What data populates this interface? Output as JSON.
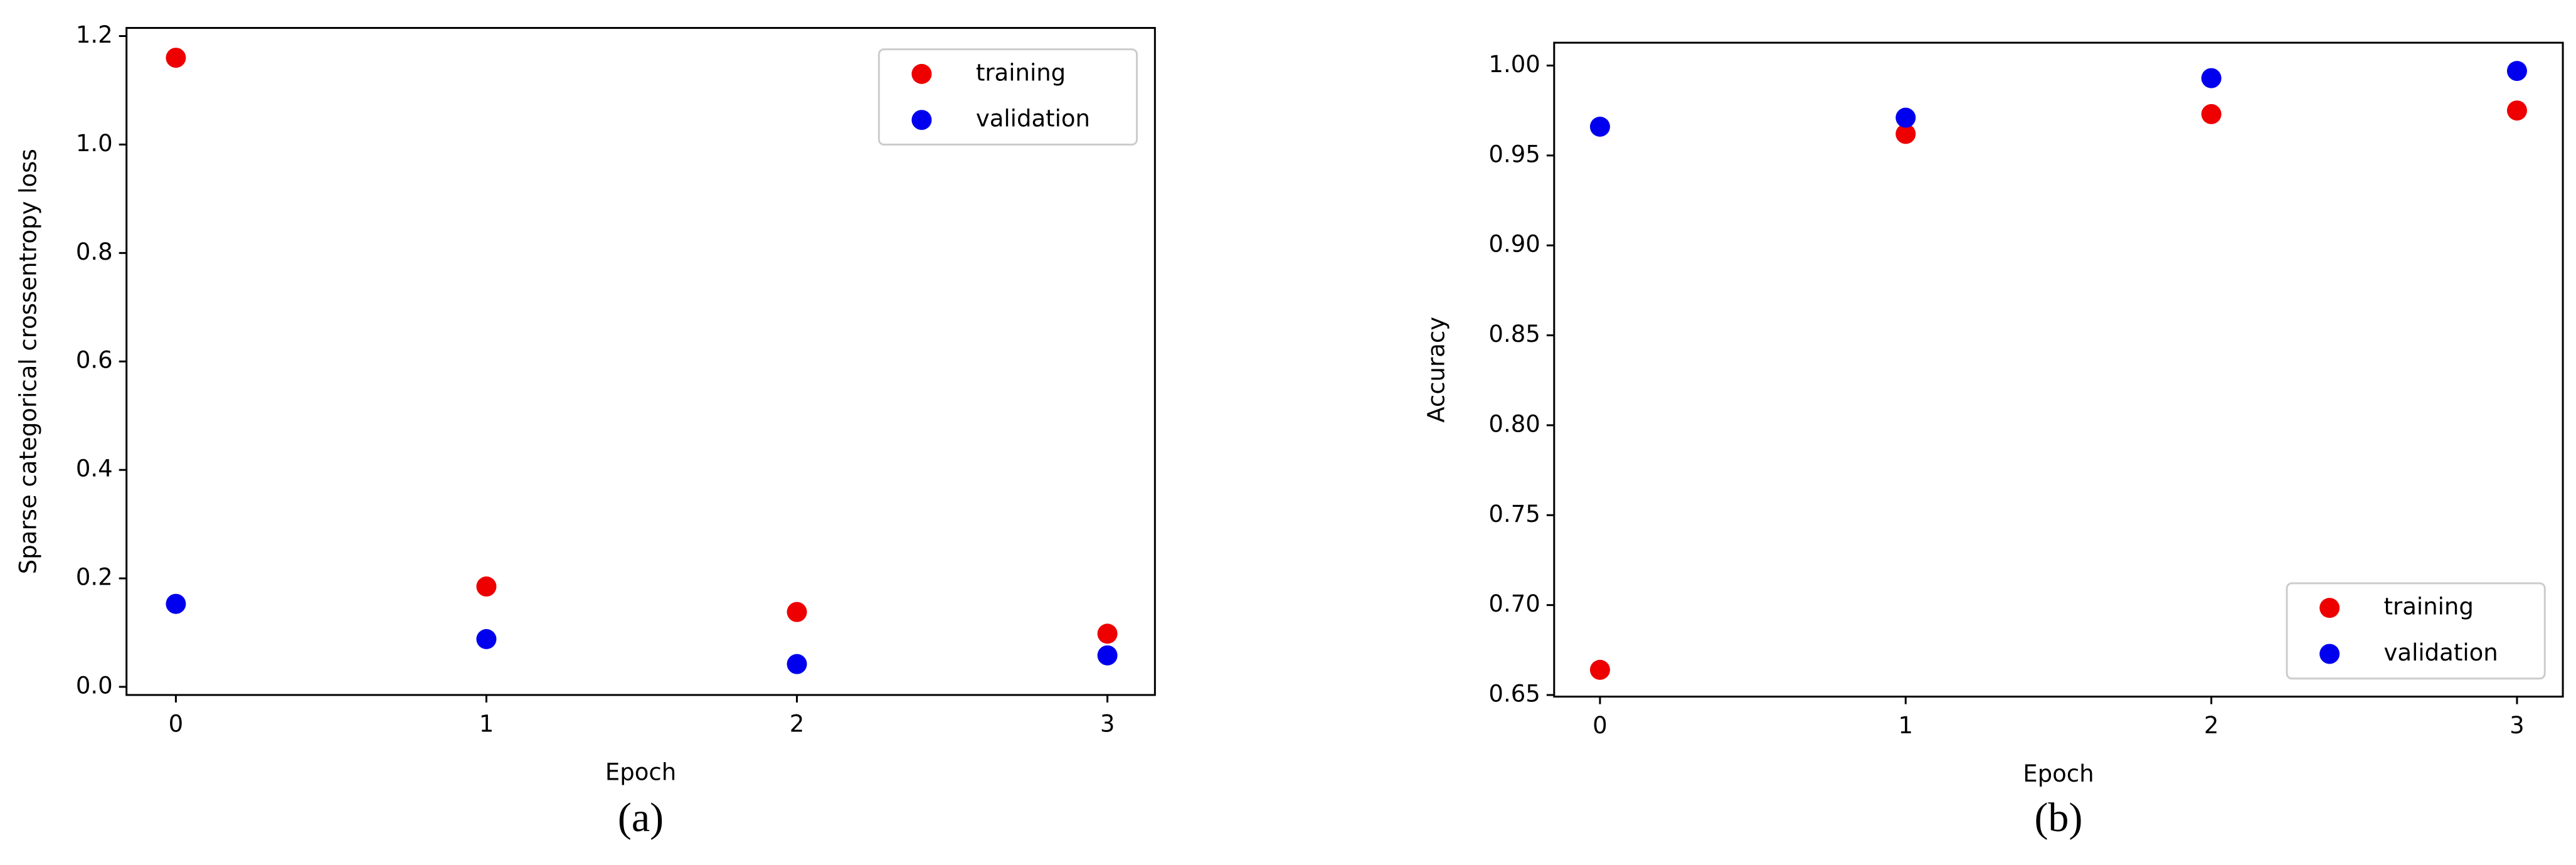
{
  "chart_data": [
    {
      "type": "scatter",
      "caption": "(a)",
      "xlabel": "Epoch",
      "ylabel": "Sparse categorical crossentropy loss",
      "x": [
        0,
        1,
        2,
        3
      ],
      "series": [
        {
          "name": "training",
          "color": "#ee0000",
          "values": [
            1.16,
            0.185,
            0.138,
            0.098
          ]
        },
        {
          "name": "validation",
          "color": "#0000ee",
          "values": [
            0.153,
            0.088,
            0.042,
            0.058
          ]
        }
      ],
      "xlim": [
        -0.159,
        3.153
      ],
      "xticks": [
        0,
        1,
        2,
        3
      ],
      "ylim": [
        -0.015,
        1.215
      ],
      "yticks": [
        {
          "value": 0,
          "label": "0.0"
        },
        0.2,
        0.4,
        0.6,
        0.8,
        {
          "value": 1,
          "label": "1.0"
        },
        1.2
      ],
      "legend": "upper-right"
    },
    {
      "type": "scatter",
      "caption": "(b)",
      "xlabel": "Epoch",
      "ylabel": "Accuracy",
      "x": [
        0,
        1,
        2,
        3
      ],
      "series": [
        {
          "name": "training",
          "color": "#ee0000",
          "values": [
            0.664,
            0.962,
            0.973,
            0.975
          ]
        },
        {
          "name": "validation",
          "color": "#0000ee",
          "values": [
            0.966,
            0.971,
            0.993,
            0.997
          ]
        }
      ],
      "xlim": [
        -0.15,
        3.15
      ],
      "xticks": [
        0,
        1,
        2,
        3
      ],
      "ylim": [
        0.6491,
        1.0127
      ],
      "yticks": [
        0.65,
        {
          "value": 0.7,
          "label": "0.70"
        },
        0.75,
        {
          "value": 0.8,
          "label": "0.80"
        },
        0.85,
        {
          "value": 0.9,
          "label": "0.90"
        },
        0.95,
        {
          "value": 1,
          "label": "1.00"
        }
      ],
      "legend": "lower-right"
    }
  ]
}
